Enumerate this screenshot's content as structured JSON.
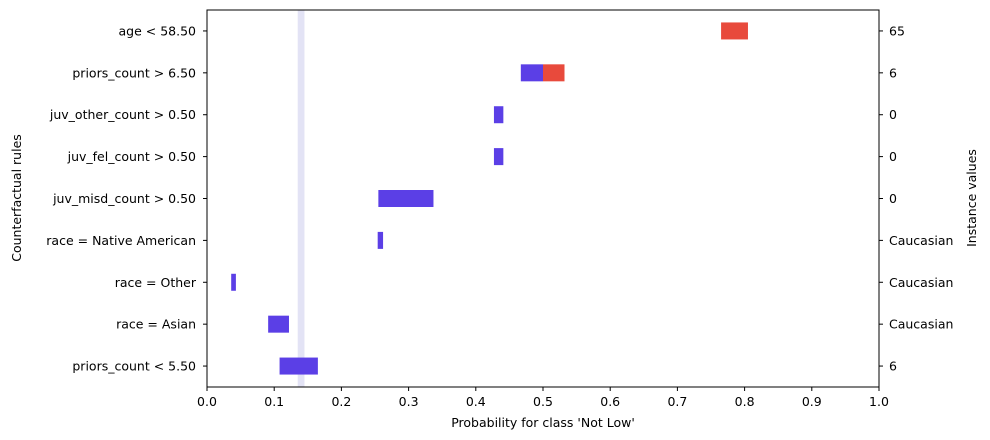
{
  "chart_data": {
    "type": "bar",
    "xlabel": "Probability for class 'Not Low'",
    "ylabel": "Counterfactual rules",
    "ylabel_right": "Instance values",
    "xlim": [
      0.0,
      1.0
    ],
    "xticks": [
      "0.0",
      "0.1",
      "0.2",
      "0.3",
      "0.4",
      "0.5",
      "0.6",
      "0.7",
      "0.8",
      "0.9",
      "1.0"
    ],
    "grid": false,
    "reference_band": {
      "x0": 0.135,
      "x1": 0.145,
      "color": "#e3e3f5"
    },
    "colors": {
      "decrease": "#5b3fe6",
      "increase": "#e84a3c"
    },
    "rules": [
      {
        "label": "age < 58.50",
        "instance": "65",
        "segments": [
          {
            "x0": 0.765,
            "x1": 0.805,
            "color": "increase"
          }
        ]
      },
      {
        "label": "priors_count > 6.50",
        "instance": "6",
        "segments": [
          {
            "x0": 0.467,
            "x1": 0.5,
            "color": "decrease"
          },
          {
            "x0": 0.5,
            "x1": 0.532,
            "color": "increase"
          }
        ]
      },
      {
        "label": "juv_other_count > 0.50",
        "instance": "0",
        "segments": [
          {
            "x0": 0.427,
            "x1": 0.441,
            "color": "decrease"
          }
        ]
      },
      {
        "label": "juv_fel_count > 0.50",
        "instance": "0",
        "segments": [
          {
            "x0": 0.427,
            "x1": 0.441,
            "color": "decrease"
          }
        ]
      },
      {
        "label": "juv_misd_count > 0.50",
        "instance": "0",
        "segments": [
          {
            "x0": 0.255,
            "x1": 0.337,
            "color": "decrease"
          }
        ]
      },
      {
        "label": "race = Native American",
        "instance": "Caucasian",
        "segments": [
          {
            "x0": 0.254,
            "x1": 0.262,
            "color": "decrease"
          }
        ]
      },
      {
        "label": "race = Other",
        "instance": "Caucasian",
        "segments": [
          {
            "x0": 0.036,
            "x1": 0.043,
            "color": "decrease"
          }
        ]
      },
      {
        "label": "race = Asian",
        "instance": "Caucasian",
        "segments": [
          {
            "x0": 0.091,
            "x1": 0.122,
            "color": "decrease"
          }
        ]
      },
      {
        "label": "priors_count < 5.50",
        "instance": "6",
        "segments": [
          {
            "x0": 0.108,
            "x1": 0.165,
            "color": "decrease"
          }
        ]
      }
    ]
  }
}
